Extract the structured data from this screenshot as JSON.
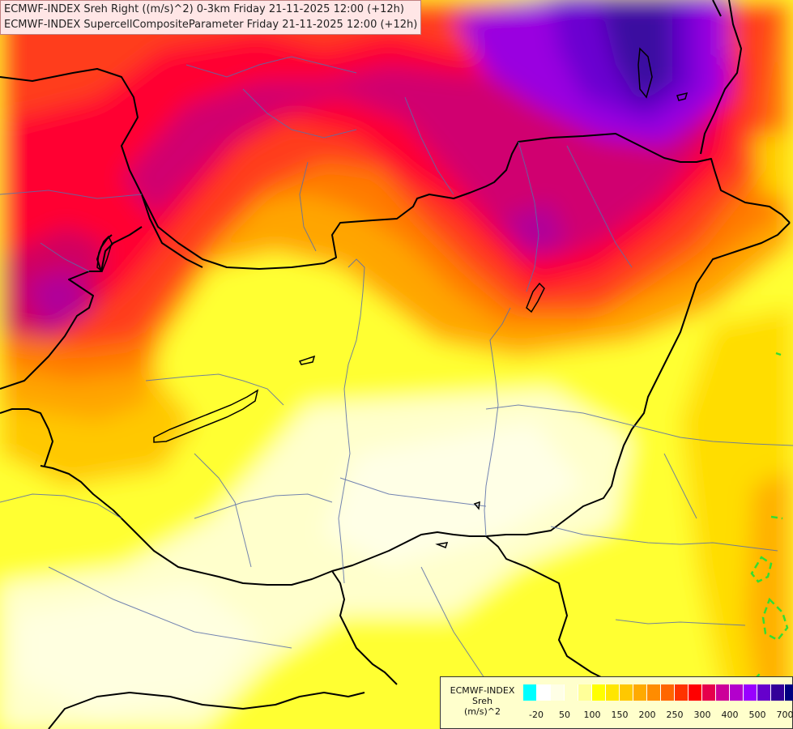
{
  "titles": [
    "ECMWF-INDEX Sreh Right ((m/s)^2) 0-3km Friday 21-11-2025 12:00 (+12h)",
    "ECMWF-INDEX SupercellCompositeParameter Friday 21-11-2025 12:00 (+12h)"
  ],
  "legend": {
    "line1": "ECMWF-INDEX",
    "line2": "Sreh",
    "line3": "(m/s)^2",
    "colors": [
      "#00ffff",
      "#ffffff",
      "#ffffe6",
      "#ffffcc",
      "#ffff99",
      "#ffff00",
      "#ffe600",
      "#ffc800",
      "#ffaa00",
      "#ff8c00",
      "#ff6600",
      "#ff3300",
      "#ff0000",
      "#e6004c",
      "#cc0099",
      "#b300cc",
      "#9900ff",
      "#6600cc",
      "#330099",
      "#000080"
    ],
    "ticks": [
      "-20",
      "50",
      "100",
      "150",
      "200",
      "250",
      "300",
      "400",
      "500",
      "700"
    ]
  },
  "map": {
    "region": "Pannonian Basin / Hungary",
    "scp_contour_color": "#33dd33"
  }
}
